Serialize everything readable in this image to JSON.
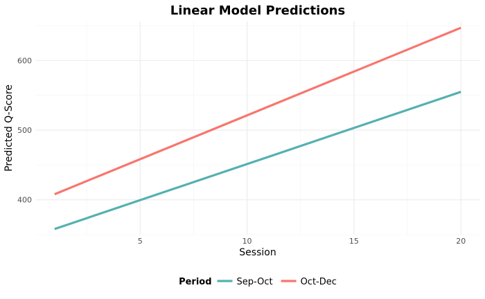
{
  "chart_data": {
    "type": "line",
    "title": "Linear Model Predictions",
    "xlabel": "Session",
    "ylabel": "Predicted Q-Score",
    "xlim": [
      0.1,
      20.9
    ],
    "ylim": [
      350,
      656
    ],
    "x_ticks": [
      5,
      10,
      15,
      20
    ],
    "y_ticks": [
      400,
      500,
      600
    ],
    "grid": true,
    "legend": {
      "title": "Period",
      "position": "bottom"
    },
    "series": [
      {
        "name": "Sep-Oct",
        "color": "#56B0B0",
        "x": [
          1,
          20
        ],
        "y": [
          358,
          555
        ]
      },
      {
        "name": "Oct-Dec",
        "color": "#F8766D",
        "x": [
          1,
          20
        ],
        "y": [
          408,
          647
        ]
      }
    ]
  }
}
